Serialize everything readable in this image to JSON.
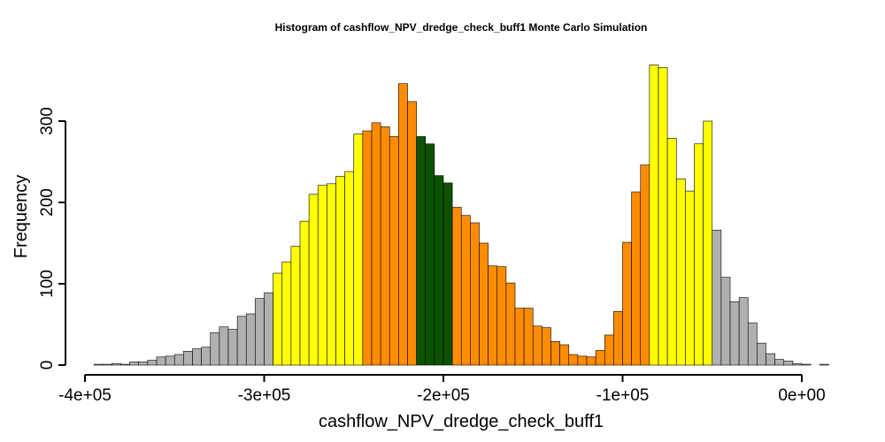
{
  "chart_data": {
    "type": "bar",
    "title": "Histogram of  cashflow_NPV_dredge_check_buff1  Monte Carlo Simulation",
    "xlabel": "cashflow_NPV_dredge_check_buff1",
    "ylabel": "Frequency",
    "xlim": [
      -400000,
      0
    ],
    "ylim": [
      0,
      370
    ],
    "x_ticks": [
      -400000,
      -300000,
      -200000,
      -100000,
      0
    ],
    "x_tick_labels": [
      "-4e+05",
      "-3e+05",
      "-2e+05",
      "-1e+05",
      "0e+00"
    ],
    "y_ticks": [
      0,
      100,
      200,
      300
    ],
    "y_tick_labels": [
      "0",
      "100",
      "200",
      "300"
    ],
    "bin_start": -395000,
    "bin_width": 5000,
    "grid": false,
    "legend": "none",
    "colors": {
      "gray": "#b0b0b0",
      "yellow": "#ffff00",
      "orange": "#ff8c00",
      "green": "#0d5200"
    },
    "bins": [
      {
        "value": 1,
        "color": "gray"
      },
      {
        "value": 1,
        "color": "gray"
      },
      {
        "value": 2,
        "color": "gray"
      },
      {
        "value": 1,
        "color": "gray"
      },
      {
        "value": 4,
        "color": "gray"
      },
      {
        "value": 4,
        "color": "gray"
      },
      {
        "value": 6,
        "color": "gray"
      },
      {
        "value": 10,
        "color": "gray"
      },
      {
        "value": 11,
        "color": "gray"
      },
      {
        "value": 13,
        "color": "gray"
      },
      {
        "value": 17,
        "color": "gray"
      },
      {
        "value": 20,
        "color": "gray"
      },
      {
        "value": 22,
        "color": "gray"
      },
      {
        "value": 40,
        "color": "gray"
      },
      {
        "value": 47,
        "color": "gray"
      },
      {
        "value": 44,
        "color": "gray"
      },
      {
        "value": 60,
        "color": "gray"
      },
      {
        "value": 63,
        "color": "gray"
      },
      {
        "value": 82,
        "color": "gray"
      },
      {
        "value": 89,
        "color": "gray"
      },
      {
        "value": 113,
        "color": "yellow"
      },
      {
        "value": 127,
        "color": "yellow"
      },
      {
        "value": 146,
        "color": "yellow"
      },
      {
        "value": 177,
        "color": "yellow"
      },
      {
        "value": 210,
        "color": "yellow"
      },
      {
        "value": 221,
        "color": "yellow"
      },
      {
        "value": 223,
        "color": "yellow"
      },
      {
        "value": 232,
        "color": "yellow"
      },
      {
        "value": 238,
        "color": "yellow"
      },
      {
        "value": 284,
        "color": "yellow"
      },
      {
        "value": 288,
        "color": "orange"
      },
      {
        "value": 298,
        "color": "orange"
      },
      {
        "value": 293,
        "color": "orange"
      },
      {
        "value": 281,
        "color": "orange"
      },
      {
        "value": 346,
        "color": "orange"
      },
      {
        "value": 324,
        "color": "orange"
      },
      {
        "value": 281,
        "color": "green"
      },
      {
        "value": 272,
        "color": "green"
      },
      {
        "value": 233,
        "color": "green"
      },
      {
        "value": 224,
        "color": "green"
      },
      {
        "value": 194,
        "color": "orange"
      },
      {
        "value": 184,
        "color": "orange"
      },
      {
        "value": 175,
        "color": "orange"
      },
      {
        "value": 150,
        "color": "orange"
      },
      {
        "value": 122,
        "color": "orange"
      },
      {
        "value": 121,
        "color": "orange"
      },
      {
        "value": 101,
        "color": "orange"
      },
      {
        "value": 70,
        "color": "orange"
      },
      {
        "value": 70,
        "color": "orange"
      },
      {
        "value": 48,
        "color": "orange"
      },
      {
        "value": 46,
        "color": "orange"
      },
      {
        "value": 29,
        "color": "orange"
      },
      {
        "value": 25,
        "color": "orange"
      },
      {
        "value": 13,
        "color": "orange"
      },
      {
        "value": 11,
        "color": "orange"
      },
      {
        "value": 10,
        "color": "orange"
      },
      {
        "value": 18,
        "color": "orange"
      },
      {
        "value": 37,
        "color": "orange"
      },
      {
        "value": 66,
        "color": "orange"
      },
      {
        "value": 151,
        "color": "orange"
      },
      {
        "value": 213,
        "color": "orange"
      },
      {
        "value": 246,
        "color": "orange"
      },
      {
        "value": 369,
        "color": "yellow"
      },
      {
        "value": 366,
        "color": "yellow"
      },
      {
        "value": 279,
        "color": "yellow"
      },
      {
        "value": 229,
        "color": "yellow"
      },
      {
        "value": 214,
        "color": "yellow"
      },
      {
        "value": 272,
        "color": "yellow"
      },
      {
        "value": 300,
        "color": "yellow"
      },
      {
        "value": 166,
        "color": "gray"
      },
      {
        "value": 108,
        "color": "gray"
      },
      {
        "value": 78,
        "color": "gray"
      },
      {
        "value": 83,
        "color": "gray"
      },
      {
        "value": 52,
        "color": "gray"
      },
      {
        "value": 27,
        "color": "gray"
      },
      {
        "value": 14,
        "color": "gray"
      },
      {
        "value": 7,
        "color": "gray"
      },
      {
        "value": 5,
        "color": "gray"
      },
      {
        "value": 2,
        "color": "gray"
      },
      {
        "value": 1,
        "color": "gray"
      },
      {
        "value": 0,
        "color": "gray"
      },
      {
        "value": 1,
        "color": "gray"
      }
    ]
  }
}
